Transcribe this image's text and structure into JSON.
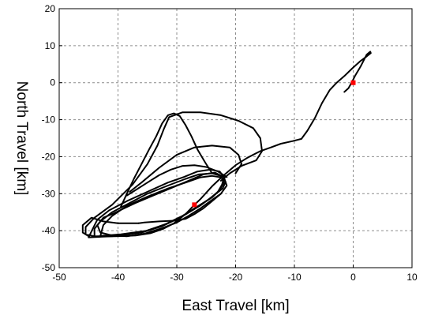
{
  "chart_data": {
    "type": "line",
    "title": "",
    "xlabel": "East Travel [km]",
    "ylabel": "North Travel [km]",
    "xlim": [
      -50,
      10
    ],
    "ylim": [
      -50,
      20
    ],
    "xticks": [
      -50,
      -40,
      -30,
      -20,
      -10,
      0,
      10
    ],
    "yticks": [
      -50,
      -40,
      -30,
      -20,
      -10,
      0,
      10,
      20
    ],
    "grid": true,
    "line_color": "#000000",
    "marker_color": "#ff0000",
    "markers": [
      {
        "x": 0,
        "y": 0
      },
      {
        "x": -27,
        "y": -33
      }
    ],
    "series": [
      {
        "paths": [
          [
            [
              -1.5,
              -2.5
            ],
            [
              -0.8,
              -1.5
            ],
            [
              -0.2,
              0.2
            ],
            [
              0.3,
              1.8
            ],
            [
              1.3,
              4.5
            ],
            [
              2.3,
              7.6
            ],
            [
              2.9,
              8.4
            ],
            [
              3.0,
              8.0
            ],
            [
              2.3,
              7.1
            ],
            [
              1.2,
              5.8
            ],
            [
              -0.2,
              3.8
            ],
            [
              -1.5,
              1.8
            ],
            [
              -2.8,
              0.0
            ],
            [
              -4.0,
              -2.0
            ],
            [
              -5.3,
              -5.5
            ],
            [
              -6.5,
              -9.5
            ],
            [
              -7.8,
              -13.0
            ],
            [
              -8.8,
              -15.2
            ],
            [
              -10.3,
              -15.8
            ],
            [
              -12.3,
              -16.5
            ],
            [
              -14.0,
              -17.5
            ],
            [
              -15.8,
              -18.5
            ],
            [
              -18.0,
              -20.3
            ],
            [
              -20.0,
              -22.3
            ],
            [
              -22.0,
              -25.0
            ],
            [
              -24.0,
              -28.0
            ],
            [
              -26.0,
              -31.5
            ],
            [
              -27.0,
              -33.0
            ],
            [
              -28.5,
              -35.5
            ],
            [
              -30.5,
              -38.0
            ],
            [
              -32.3,
              -39.5
            ],
            [
              -34.5,
              -40.7
            ],
            [
              -37.0,
              -41.3
            ],
            [
              -40.5,
              -41.5
            ],
            [
              -44.0,
              -41.5
            ],
            [
              -45.5,
              -41.0
            ],
            [
              -45.5,
              -39.0
            ],
            [
              -44.0,
              -36.5
            ],
            [
              -41.0,
              -33.0
            ],
            [
              -37.5,
              -27.5
            ],
            [
              -35.0,
              -22.0
            ],
            [
              -33.3,
              -17.0
            ],
            [
              -32.2,
              -12.5
            ],
            [
              -31.3,
              -9.3
            ],
            [
              -29.0,
              -8.0
            ],
            [
              -26.0,
              -8.0
            ],
            [
              -22.5,
              -8.8
            ],
            [
              -19.5,
              -10.3
            ],
            [
              -17.0,
              -12.3
            ],
            [
              -15.8,
              -15.0
            ],
            [
              -15.5,
              -18.5
            ],
            [
              -16.5,
              -21.0
            ],
            [
              -19.0,
              -22.5
            ],
            [
              -21.0,
              -24.5
            ],
            [
              -22.5,
              -26.5
            ]
          ],
          [
            [
              -45.0,
              -41.8
            ],
            [
              -41.0,
              -41.5
            ],
            [
              -36.0,
              -40.5
            ],
            [
              -32.5,
              -38.8
            ],
            [
              -29.5,
              -36.5
            ],
            [
              -27.0,
              -34.0
            ],
            [
              -24.5,
              -31.5
            ],
            [
              -23.0,
              -29.5
            ],
            [
              -22.3,
              -27.5
            ],
            [
              -22.0,
              -25.5
            ],
            [
              -22.7,
              -24.0
            ],
            [
              -24.3,
              -23.5
            ],
            [
              -26.5,
              -24.0
            ],
            [
              -28.8,
              -25.5
            ],
            [
              -31.5,
              -27.0
            ],
            [
              -35.0,
              -29.5
            ],
            [
              -38.5,
              -32.0
            ],
            [
              -41.5,
              -34.5
            ],
            [
              -43.5,
              -37.0
            ],
            [
              -44.3,
              -39.5
            ],
            [
              -45.0,
              -41.8
            ]
          ],
          [
            [
              -44.0,
              -41.6
            ],
            [
              -40.0,
              -41.2
            ],
            [
              -35.5,
              -40.2
            ],
            [
              -32.0,
              -38.3
            ],
            [
              -29.0,
              -36.0
            ],
            [
              -26.5,
              -33.5
            ],
            [
              -24.0,
              -31.0
            ],
            [
              -22.7,
              -29.0
            ],
            [
              -22.0,
              -27.0
            ],
            [
              -22.5,
              -25.2
            ],
            [
              -24.0,
              -24.5
            ],
            [
              -26.3,
              -24.8
            ],
            [
              -28.5,
              -26.0
            ],
            [
              -31.5,
              -27.8
            ],
            [
              -35.0,
              -30.0
            ],
            [
              -38.0,
              -32.5
            ],
            [
              -41.0,
              -35.0
            ],
            [
              -43.0,
              -37.5
            ],
            [
              -44.0,
              -39.5
            ],
            [
              -44.0,
              -41.6
            ]
          ],
          [
            [
              -43.0,
              -41.4
            ],
            [
              -39.5,
              -41.0
            ],
            [
              -35.0,
              -40.0
            ],
            [
              -31.5,
              -38.0
            ],
            [
              -28.5,
              -35.6
            ],
            [
              -26.0,
              -33.2
            ],
            [
              -23.8,
              -30.6
            ],
            [
              -22.2,
              -28.6
            ],
            [
              -21.7,
              -26.8
            ],
            [
              -22.4,
              -25.6
            ],
            [
              -24.0,
              -25.2
            ],
            [
              -26.0,
              -25.6
            ],
            [
              -28.5,
              -27.0
            ],
            [
              -31.5,
              -28.6
            ],
            [
              -35.0,
              -30.8
            ],
            [
              -38.5,
              -33.3
            ],
            [
              -41.0,
              -36.0
            ],
            [
              -42.5,
              -38.5
            ],
            [
              -43.0,
              -41.4
            ]
          ],
          [
            [
              -41.0,
              -35.5
            ],
            [
              -39.0,
              -34.0
            ],
            [
              -37.0,
              -32.5
            ],
            [
              -34.0,
              -30.5
            ],
            [
              -31.0,
              -28.5
            ],
            [
              -28.0,
              -26.5
            ],
            [
              -25.5,
              -24.8
            ],
            [
              -23.5,
              -24.3
            ],
            [
              -22.0,
              -25.5
            ],
            [
              -21.5,
              -27.8
            ],
            [
              -22.5,
              -30.0
            ],
            [
              -24.3,
              -32.0
            ],
            [
              -26.0,
              -34.0
            ],
            [
              -28.0,
              -36.0
            ],
            [
              -30.0,
              -37.8
            ],
            [
              -32.5,
              -39.3
            ],
            [
              -35.5,
              -40.8
            ],
            [
              -38.5,
              -41.5
            ],
            [
              -41.0,
              -41.3
            ],
            [
              -43.0,
              -40.5
            ],
            [
              -43.5,
              -38.5
            ],
            [
              -42.5,
              -36.5
            ],
            [
              -41.0,
              -35.5
            ]
          ],
          [
            [
              -39.5,
              -33.5
            ],
            [
              -38.5,
              -30.0
            ],
            [
              -37.3,
              -26.0
            ],
            [
              -36.0,
              -22.0
            ],
            [
              -34.7,
              -18.0
            ],
            [
              -33.5,
              -14.5
            ],
            [
              -32.5,
              -11.0
            ],
            [
              -31.5,
              -8.8
            ],
            [
              -30.5,
              -8.3
            ],
            [
              -29.5,
              -9.0
            ],
            [
              -28.5,
              -11.5
            ],
            [
              -27.5,
              -14.5
            ],
            [
              -26.5,
              -18.0
            ],
            [
              -25.2,
              -21.5
            ],
            [
              -24.0,
              -24.5
            ]
          ],
          [
            [
              -36.5,
              -38.0
            ],
            [
              -35.5,
              -37.8
            ],
            [
              -33.0,
              -37.5
            ],
            [
              -30.5,
              -37.3
            ],
            [
              -28.5,
              -36.8
            ],
            [
              -27.0,
              -35.5
            ],
            [
              -25.5,
              -34.0
            ],
            [
              -24.0,
              -32.0
            ],
            [
              -22.5,
              -30.0
            ]
          ],
          [
            [
              -36.5,
              -38.0
            ],
            [
              -38.0,
              -38.0
            ],
            [
              -40.0,
              -38.0
            ],
            [
              -42.5,
              -37.5
            ],
            [
              -44.5,
              -36.5
            ],
            [
              -46.0,
              -38.5
            ],
            [
              -46.0,
              -40.5
            ],
            [
              -45.0,
              -41.5
            ]
          ],
          [
            [
              -38.0,
              -29.5
            ],
            [
              -36.0,
              -27.0
            ],
            [
              -33.0,
              -23.0
            ],
            [
              -30.0,
              -19.5
            ],
            [
              -27.0,
              -17.5
            ],
            [
              -24.0,
              -17.0
            ],
            [
              -21.0,
              -17.5
            ],
            [
              -19.5,
              -19.5
            ],
            [
              -19.0,
              -22.0
            ],
            [
              -20.0,
              -24.5
            ]
          ],
          [
            [
              -38.5,
              -30.5
            ],
            [
              -37.0,
              -29.0
            ],
            [
              -35.0,
              -27.0
            ],
            [
              -33.0,
              -25.0
            ],
            [
              -31.0,
              -23.5
            ],
            [
              -29.0,
              -22.5
            ],
            [
              -27.0,
              -22.3
            ],
            [
              -25.0,
              -22.8
            ],
            [
              -23.0,
              -24.0
            ],
            [
              -21.5,
              -25.5
            ]
          ]
        ]
      }
    ]
  }
}
